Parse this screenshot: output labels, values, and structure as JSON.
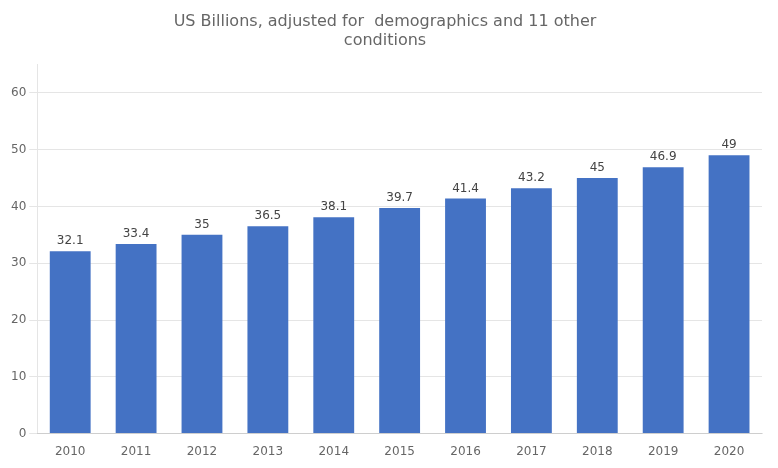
{
  "chart_data": {
    "type": "bar",
    "title": "US Billions, adjusted for  demographics and 11 other\nconditions",
    "categories": [
      "2010",
      "2011",
      "2012",
      "2013",
      "2014",
      "2015",
      "2016",
      "2017",
      "2018",
      "2019",
      "2020"
    ],
    "values": [
      32.1,
      33.4,
      35,
      36.5,
      38.1,
      39.7,
      41.4,
      43.2,
      45,
      46.9,
      49
    ],
    "color": "#4472C4",
    "ylim": [
      0,
      65
    ],
    "yticks": [
      0,
      10,
      20,
      30,
      40,
      50,
      60
    ],
    "grid": true,
    "data_labels": true
  }
}
